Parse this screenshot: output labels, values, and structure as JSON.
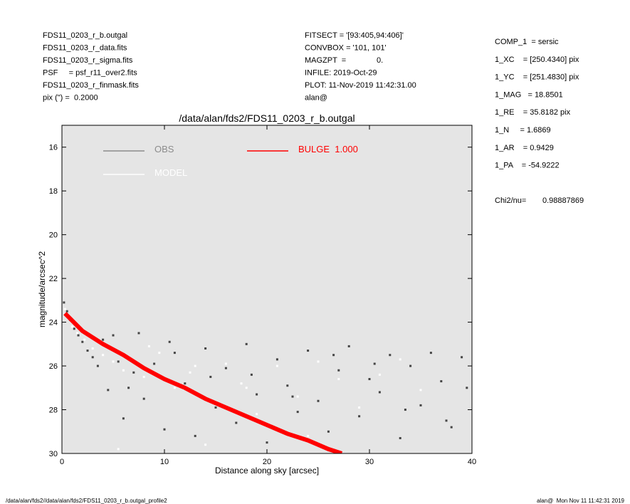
{
  "chart_data": {
    "type": "scatter",
    "title": "/data/alan/fds2/FDS11_0203_r_b.outgal",
    "x_label": "Distance along sky [arcsec]",
    "y_label": "magnitude/arcsec^2",
    "header_left": [
      "FDS11_0203_r_b.outgal",
      "FDS11_0203_r_data.fits",
      "FDS11_0203_r_sigma.fits",
      "PSF     = psf_r11_over2.fits",
      "FDS11_0203_r_finmask.fits",
      "pix (\") =  0.2000"
    ],
    "header_middle": [
      "FITSECT = '[93:405,94:406]'",
      "CONVBOX = '101, 101'",
      "MAGZPT  =              0.",
      "INFILE: 2019-Oct-29",
      "PLOT: 11-Nov-2019 11:42:31.00",
      "alan@"
    ],
    "header_right": [
      "COMP_1  = sersic",
      "1_XC    = [250.4340] pix",
      "1_YC    = [251.4830] pix",
      "1_MAG   = 18.8501",
      "1_RE    = 35.8182 pix",
      "1_N     = 1.6869",
      "1_AR    = 0.9429",
      "1_PA    = -54.9222"
    ],
    "chi2_label": "Chi2/nu=",
    "chi2_value": "0.98887869",
    "footer_left": "/data/alan/fds2//data/alan/fds2/FDS11_0203_r_b.outgal_profile2",
    "footer_right": "alan@  Mon Nov 11 11:42:31 2019",
    "xlim": [
      0,
      40
    ],
    "ylim": [
      30,
      15
    ],
    "xticks": [
      0,
      10,
      20,
      30,
      40
    ],
    "yticks": [
      16,
      18,
      20,
      22,
      24,
      26,
      28,
      30
    ],
    "plot_background": "#e5e5e5",
    "series": [
      {
        "name": "OBS",
        "color": "#444444",
        "legend_color": "#8c8c8c",
        "style": "points",
        "x": [
          0.2,
          0.5,
          0.8,
          1.2,
          1.6,
          2.0,
          2.5,
          3.0,
          3.5,
          4.0,
          4.5,
          5.0,
          5.5,
          6.0,
          7.0,
          7.5,
          8.0,
          9.0,
          10.0,
          11.0,
          12.0,
          13.0,
          14.0,
          15.0,
          16.0,
          17.0,
          18.0,
          19.0,
          20.0,
          21.0,
          22.0,
          23.0,
          24.0,
          25.0,
          26.0,
          27.0,
          28.0,
          29.0,
          30.0,
          31.0,
          32.0,
          33.0,
          34.0,
          35.0,
          36.0,
          37.0,
          38.0,
          39.0,
          39.5,
          10.5,
          18.5,
          26.5,
          33.5,
          6.5,
          14.5,
          22.5,
          30.5,
          37.5
        ],
        "values": [
          23.1,
          23.5,
          23.9,
          24.3,
          24.6,
          24.9,
          25.3,
          25.6,
          26.0,
          24.8,
          27.1,
          24.6,
          25.8,
          28.4,
          26.3,
          24.5,
          27.5,
          25.9,
          28.9,
          25.4,
          26.8,
          29.2,
          25.2,
          27.9,
          26.1,
          28.6,
          25.0,
          27.3,
          29.5,
          25.7,
          26.9,
          28.1,
          25.3,
          27.6,
          29.0,
          26.2,
          25.1,
          28.3,
          26.6,
          27.2,
          25.5,
          29.3,
          26.0,
          27.8,
          25.4,
          26.7,
          28.8,
          25.6,
          27.0,
          24.9,
          26.4,
          25.5,
          28.0,
          27.0,
          26.5,
          27.4,
          25.9,
          28.5
        ]
      },
      {
        "name": "MODEL",
        "color": "#ffffff",
        "legend_color": "#ffffff",
        "style": "points",
        "x": [
          0.3,
          0.7,
          1.0,
          1.5,
          2.2,
          3.0,
          4.0,
          5.0,
          6.0,
          8.0,
          9.5,
          11.0,
          12.5,
          14.0,
          16.0,
          17.5,
          19.0,
          21.0,
          23.0,
          25.0,
          27.0,
          29.0,
          31.0,
          33.0,
          35.0,
          5.5,
          8.5,
          13.0,
          18.0,
          24.0
        ],
        "values": [
          23.4,
          23.8,
          24.2,
          24.5,
          24.8,
          25.2,
          25.5,
          25.8,
          26.2,
          26.5,
          25.4,
          27.0,
          26.3,
          29.6,
          25.9,
          26.8,
          28.2,
          26.0,
          27.4,
          25.8,
          26.6,
          27.9,
          26.4,
          25.7,
          27.1,
          29.8,
          25.1,
          26.0,
          27.0,
          29.2
        ]
      },
      {
        "name": "BULGE  1.000",
        "color": "#ff0000",
        "legend_color": "#ff0000",
        "style": "band",
        "x": [
          0.3,
          2,
          4,
          6,
          8,
          10,
          12,
          14,
          16,
          18,
          20,
          22,
          24,
          26,
          27.3
        ],
        "values": [
          23.6,
          24.4,
          25.0,
          25.5,
          26.1,
          26.6,
          27.0,
          27.5,
          27.9,
          28.3,
          28.7,
          29.1,
          29.4,
          29.8,
          30.0
        ]
      }
    ]
  }
}
